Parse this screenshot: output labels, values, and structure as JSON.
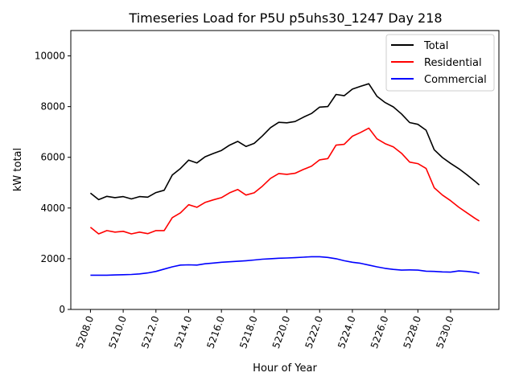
{
  "chart_data": {
    "type": "line",
    "title": "Timeseries Load for P5U p5uhs30_1247  Day 218",
    "xlabel": "Hour of Year",
    "ylabel": "kW total",
    "xlim": [
      5206.8,
      5232.95
    ],
    "ylim": [
      0,
      11000
    ],
    "xticks": [
      "5208.0",
      "5210.0",
      "5212.0",
      "5214.0",
      "5216.0",
      "5218.0",
      "5220.0",
      "5222.0",
      "5224.0",
      "5226.0",
      "5228.0",
      "5230.0"
    ],
    "xtick_values": [
      5208,
      5210,
      5212,
      5214,
      5216,
      5218,
      5220,
      5222,
      5224,
      5226,
      5228,
      5230
    ],
    "yticks": [
      "0",
      "2000",
      "4000",
      "6000",
      "8000",
      "10000"
    ],
    "ytick_values": [
      0,
      2000,
      4000,
      6000,
      8000,
      10000
    ],
    "grid": false,
    "legend_position": "top-right",
    "x": [
      5208,
      5208.5,
      5209,
      5209.5,
      5210,
      5210.5,
      5211,
      5211.5,
      5212,
      5212.5,
      5213,
      5213.5,
      5214,
      5214.5,
      5215,
      5215.5,
      5216,
      5216.5,
      5217,
      5217.5,
      5218,
      5218.5,
      5219,
      5219.5,
      5220,
      5220.5,
      5221,
      5221.5,
      5222,
      5222.5,
      5223,
      5223.5,
      5224,
      5224.5,
      5225,
      5225.5,
      5226,
      5226.5,
      5227,
      5227.5,
      5228,
      5228.5,
      5229,
      5229.5,
      5230,
      5230.5,
      5231,
      5231.5,
      5231.75
    ],
    "series": [
      {
        "name": "Total",
        "color": "#000000",
        "values": [
          4590,
          4330,
          4460,
          4410,
          4450,
          4360,
          4450,
          4430,
          4610,
          4700,
          5300,
          5560,
          5890,
          5780,
          6020,
          6150,
          6270,
          6480,
          6630,
          6430,
          6550,
          6840,
          7170,
          7380,
          7360,
          7410,
          7580,
          7730,
          7980,
          8000,
          8480,
          8430,
          8690,
          8800,
          8900,
          8410,
          8160,
          7990,
          7710,
          7370,
          7300,
          7070,
          6300,
          5990,
          5760,
          5550,
          5310,
          5050,
          4910
        ]
      },
      {
        "name": "Residential",
        "color": "#ff0000",
        "values": [
          3240,
          2980,
          3110,
          3050,
          3080,
          2980,
          3050,
          2990,
          3110,
          3110,
          3620,
          3810,
          4130,
          4030,
          4220,
          4320,
          4410,
          4600,
          4730,
          4510,
          4600,
          4860,
          5170,
          5360,
          5330,
          5370,
          5520,
          5650,
          5900,
          5950,
          6480,
          6510,
          6830,
          6980,
          7150,
          6730,
          6540,
          6410,
          6160,
          5810,
          5750,
          5560,
          4800,
          4510,
          4290,
          4030,
          3810,
          3590,
          3490
        ]
      },
      {
        "name": "Commercial",
        "color": "#0000ff",
        "values": [
          1350,
          1350,
          1350,
          1360,
          1370,
          1380,
          1400,
          1440,
          1500,
          1590,
          1680,
          1750,
          1760,
          1750,
          1800,
          1830,
          1860,
          1880,
          1900,
          1920,
          1950,
          1980,
          2000,
          2020,
          2030,
          2040,
          2060,
          2080,
          2080,
          2050,
          2000,
          1920,
          1860,
          1820,
          1750,
          1680,
          1620,
          1580,
          1550,
          1560,
          1550,
          1510,
          1500,
          1480,
          1470,
          1520,
          1500,
          1460,
          1420
        ]
      }
    ]
  }
}
